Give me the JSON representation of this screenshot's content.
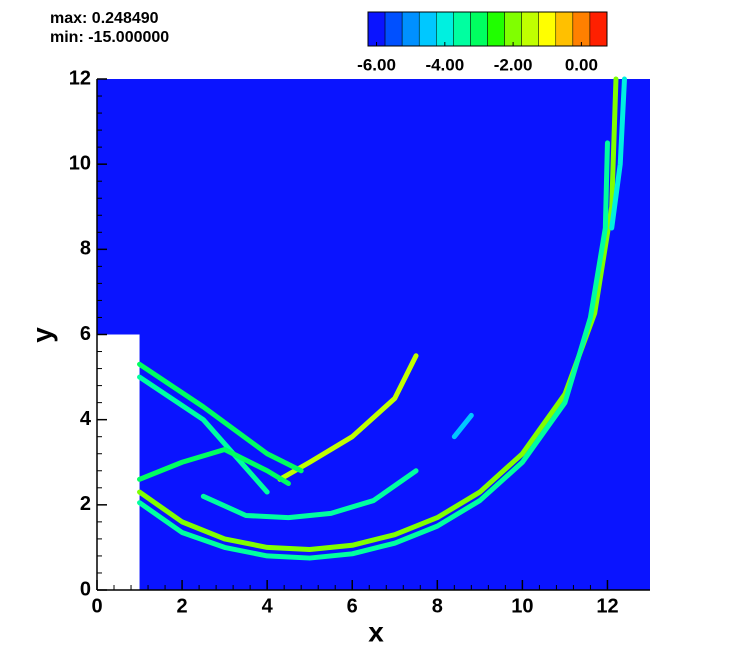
{
  "chart_data": {
    "type": "contour",
    "annotations": [
      "max: 0.248490",
      "min: -15.000000"
    ],
    "x_label": "x",
    "y_label": "y",
    "xlim": [
      0,
      13
    ],
    "ylim": [
      0,
      12
    ],
    "xticks": [
      0,
      2,
      4,
      6,
      8,
      10,
      12
    ],
    "yticks": [
      0,
      2,
      4,
      6,
      8,
      10,
      12
    ],
    "background_color": "#0a14ff",
    "obstacle": {
      "x": [
        0,
        1
      ],
      "y": [
        0,
        6
      ],
      "color": "#ffffff"
    },
    "clim": [
      -6.25,
      0.75
    ],
    "colors": [
      "#0a14ff",
      "#0050ff",
      "#0090ff",
      "#00c8ff",
      "#00f0e0",
      "#00ffa0",
      "#00ff60",
      "#20ff00",
      "#80ff00",
      "#c0ff00",
      "#ffff00",
      "#ffc000",
      "#ff8000",
      "#ff2000"
    ],
    "cticks": [
      {
        "value": -6,
        "label": "-6.00"
      },
      {
        "value": -4,
        "label": "-4.00"
      },
      {
        "value": -2,
        "label": "-2.00"
      },
      {
        "value": 0,
        "label": "0.00"
      }
    ],
    "features": [
      {
        "level": -2.2,
        "points": [
          [
            1,
            2.3
          ],
          [
            2,
            1.6
          ],
          [
            3,
            1.2
          ],
          [
            4,
            1.0
          ],
          [
            5,
            0.95
          ],
          [
            6,
            1.05
          ],
          [
            7,
            1.3
          ],
          [
            8,
            1.7
          ],
          [
            9,
            2.3
          ],
          [
            10,
            3.2
          ],
          [
            11,
            4.6
          ],
          [
            11.7,
            6.5
          ],
          [
            12.1,
            9
          ],
          [
            12.2,
            12
          ]
        ]
      },
      {
        "level": -3.6,
        "points": [
          [
            1,
            2.05
          ],
          [
            2,
            1.35
          ],
          [
            3,
            1.0
          ],
          [
            4,
            0.8
          ],
          [
            5,
            0.75
          ],
          [
            6,
            0.85
          ],
          [
            7,
            1.1
          ],
          [
            8,
            1.5
          ],
          [
            9,
            2.1
          ],
          [
            10,
            3.0
          ],
          [
            11,
            4.4
          ],
          [
            11.6,
            6.4
          ],
          [
            11.95,
            8.5
          ],
          [
            12.0,
            10.5
          ]
        ]
      },
      {
        "level": -4.2,
        "points": [
          [
            12.1,
            8.5
          ],
          [
            12.3,
            10
          ],
          [
            12.4,
            12
          ]
        ]
      },
      {
        "level": -3.6,
        "points": [
          [
            2.5,
            2.2
          ],
          [
            3.5,
            1.75
          ],
          [
            4.5,
            1.7
          ],
          [
            5.5,
            1.8
          ],
          [
            6.5,
            2.1
          ],
          [
            7.5,
            2.8
          ]
        ]
      },
      {
        "level": -1.6,
        "points": [
          [
            4.3,
            2.6
          ],
          [
            5,
            3.0
          ],
          [
            6,
            3.6
          ],
          [
            7,
            4.5
          ],
          [
            7.5,
            5.5
          ]
        ]
      },
      {
        "level": -3.2,
        "points": [
          [
            1,
            5.3
          ],
          [
            2.5,
            4.3
          ],
          [
            4,
            3.2
          ],
          [
            4.8,
            2.8
          ]
        ]
      },
      {
        "level": -3.4,
        "points": [
          [
            1,
            5.0
          ],
          [
            2.5,
            4.0
          ],
          [
            4,
            2.3
          ]
        ]
      },
      {
        "level": -3.0,
        "points": [
          [
            1,
            2.6
          ],
          [
            2,
            3.0
          ],
          [
            3,
            3.3
          ],
          [
            4,
            2.8
          ],
          [
            4.5,
            2.5
          ]
        ]
      },
      {
        "level": -4.6,
        "points": [
          [
            8.4,
            3.6
          ],
          [
            8.8,
            4.1
          ]
        ]
      }
    ]
  }
}
